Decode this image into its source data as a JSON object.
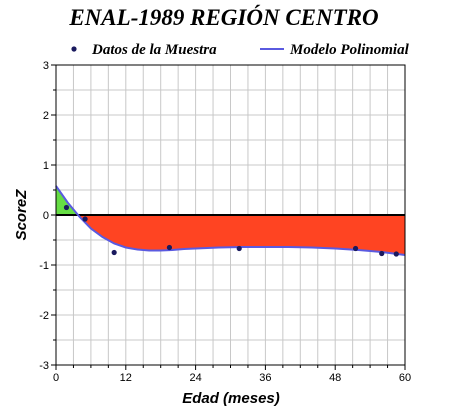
{
  "chart_data": {
    "type": "line",
    "title": "ENAL-1989 REGIÓN CENTRO",
    "xlabel": "Edad (meses)",
    "ylabel": "ScoreZ",
    "xlim": [
      0,
      60
    ],
    "ylim": [
      -3,
      3
    ],
    "x_ticks": [
      0,
      12,
      24,
      36,
      48,
      60
    ],
    "y_ticks": [
      -3,
      -2,
      -1,
      0,
      1,
      2,
      3
    ],
    "grid": true,
    "legend_position": "top",
    "series": [
      {
        "name": "Datos de la Muestra",
        "kind": "scatter",
        "color": "#1a1a5e",
        "points": [
          {
            "x": 1.8,
            "y": 0.15
          },
          {
            "x": 5.0,
            "y": -0.08
          },
          {
            "x": 10.0,
            "y": -0.75
          },
          {
            "x": 19.5,
            "y": -0.65
          },
          {
            "x": 31.5,
            "y": -0.67
          },
          {
            "x": 51.5,
            "y": -0.67
          },
          {
            "x": 56.0,
            "y": -0.77
          },
          {
            "x": 58.5,
            "y": -0.78
          }
        ]
      },
      {
        "name": "Modelo Polinomial",
        "kind": "line",
        "color": "#5a5ae0",
        "points": [
          {
            "x": 0,
            "y": 0.58
          },
          {
            "x": 2,
            "y": 0.25
          },
          {
            "x": 4,
            "y": -0.03
          },
          {
            "x": 6,
            "y": -0.27
          },
          {
            "x": 8,
            "y": -0.44
          },
          {
            "x": 10,
            "y": -0.57
          },
          {
            "x": 12,
            "y": -0.65
          },
          {
            "x": 14,
            "y": -0.69
          },
          {
            "x": 16,
            "y": -0.71
          },
          {
            "x": 18,
            "y": -0.71
          },
          {
            "x": 20,
            "y": -0.7
          },
          {
            "x": 22,
            "y": -0.68
          },
          {
            "x": 24,
            "y": -0.67
          },
          {
            "x": 28,
            "y": -0.65
          },
          {
            "x": 32,
            "y": -0.64
          },
          {
            "x": 36,
            "y": -0.64
          },
          {
            "x": 40,
            "y": -0.64
          },
          {
            "x": 44,
            "y": -0.65
          },
          {
            "x": 48,
            "y": -0.67
          },
          {
            "x": 52,
            "y": -0.7
          },
          {
            "x": 56,
            "y": -0.74
          },
          {
            "x": 60,
            "y": -0.8
          }
        ]
      }
    ],
    "fill_positive_color": "#66dd44",
    "fill_negative_color": "#ff4422",
    "zero_line_color": "#000000"
  }
}
